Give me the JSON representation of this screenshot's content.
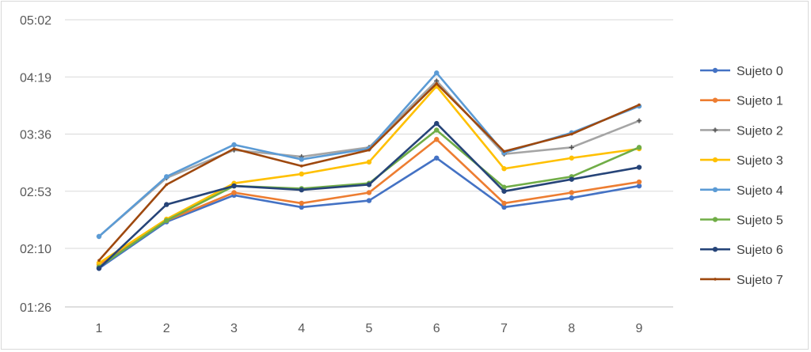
{
  "chart_data": {
    "type": "line",
    "title": "",
    "xlabel": "",
    "ylabel": "",
    "categories": [
      "1",
      "2",
      "3",
      "4",
      "5",
      "6",
      "7",
      "8",
      "9"
    ],
    "y_unit": "mm:ss",
    "ylim": [
      "01:26",
      "05:02"
    ],
    "y_ticks": [
      "01:26",
      "02:10",
      "02:53",
      "03:36",
      "04:19",
      "05:02"
    ],
    "grid": true,
    "legend_position": "right",
    "series": [
      {
        "name": "Sujeto 0",
        "color": "#4472c4",
        "marker": "circle",
        "values": [
          "01:55",
          "02:30",
          "02:50",
          "02:41",
          "02:46",
          "03:18",
          "02:41",
          "02:48",
          "02:57"
        ]
      },
      {
        "name": "Sujeto 1",
        "color": "#ed7d31",
        "marker": "circle",
        "values": [
          "01:58",
          "02:31",
          "02:52",
          "02:44",
          "02:52",
          "03:32",
          "02:44",
          "02:52",
          "03:00"
        ]
      },
      {
        "name": "Sujeto 2",
        "color": "#a5a5a5",
        "marker": "star",
        "values": [
          "02:19",
          "03:03",
          "03:24",
          "03:19",
          "03:26",
          "04:16",
          "03:21",
          "03:26",
          "03:46"
        ]
      },
      {
        "name": "Sujeto 3",
        "color": "#ffc000",
        "marker": "circle",
        "values": [
          "01:59",
          "02:32",
          "02:59",
          "03:06",
          "03:15",
          "04:12",
          "03:10",
          "03:18",
          "03:25"
        ]
      },
      {
        "name": "Sujeto 4",
        "color": "#5b9bd5",
        "marker": "circle",
        "values": [
          "02:19",
          "03:04",
          "03:28",
          "03:17",
          "03:25",
          "04:22",
          "03:22",
          "03:37",
          "03:57"
        ]
      },
      {
        "name": "Sujeto 5",
        "color": "#70ad47",
        "marker": "circle",
        "values": [
          "01:56",
          "02:31",
          "02:57",
          "02:55",
          "02:59",
          "03:39",
          "02:56",
          "03:04",
          "03:26"
        ]
      },
      {
        "name": "Sujeto 6",
        "color": "#264478",
        "marker": "circle",
        "values": [
          "01:55",
          "02:43",
          "02:57",
          "02:54",
          "02:58",
          "03:44",
          "02:53",
          "03:02",
          "03:11"
        ]
      },
      {
        "name": "Sujeto 7",
        "color": "#9e480e",
        "marker": "dot",
        "values": [
          "02:01",
          "02:58",
          "03:25",
          "03:12",
          "03:24",
          "04:14",
          "03:23",
          "03:36",
          "03:58"
        ]
      }
    ]
  }
}
